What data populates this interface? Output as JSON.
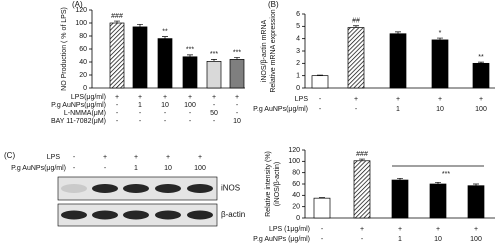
{
  "chart_data": [
    {
      "type": "bar",
      "panel_label": "(A)",
      "ylabel": "NO Production ( % of LPS)",
      "ylim": [
        0,
        120
      ],
      "yticks": [
        0,
        20,
        40,
        60,
        80,
        100,
        120
      ],
      "values": [
        100,
        94,
        76,
        48,
        41,
        44
      ],
      "errors": [
        3,
        4,
        3,
        3,
        3,
        3
      ],
      "colors": [
        "hatch",
        "#000000",
        "#000000",
        "#000000",
        "#d9d9d9",
        "#7f7f7f"
      ],
      "annotations": [
        "###",
        null,
        "**",
        "***",
        "***",
        "***"
      ],
      "conditions": [
        {
          "label": "LPS(μg/ml)",
          "values": [
            "+",
            "+",
            "+",
            "+",
            "+",
            "+"
          ]
        },
        {
          "label": "P.g AuNPs(μg/ml)",
          "values": [
            "-",
            "1",
            "10",
            "100",
            "-",
            "-"
          ]
        },
        {
          "label": "L-NMMA(μM)",
          "values": [
            "-",
            "-",
            "-",
            "-",
            "50",
            "-"
          ]
        },
        {
          "label": "BAY 11-7082(μM)",
          "values": [
            "-",
            "-",
            "-",
            "-",
            "-",
            "10"
          ]
        }
      ]
    },
    {
      "type": "bar",
      "panel_label": "(B)",
      "ylabel": [
        "iNOS/β-actin mRNA",
        "Relative mRNA expression"
      ],
      "ylim": [
        0,
        6
      ],
      "yticks": [
        0,
        1,
        2,
        3,
        4,
        5,
        6
      ],
      "values": [
        1.0,
        4.9,
        4.4,
        3.9,
        2.0
      ],
      "errors": [
        0.05,
        0.15,
        0.15,
        0.15,
        0.1
      ],
      "colors": [
        "#ffffff",
        "hatch",
        "#000000",
        "#000000",
        "#000000"
      ],
      "annotations": [
        null,
        "##",
        null,
        "*",
        "**"
      ],
      "conditions": [
        {
          "label": "LPS",
          "values": [
            "-",
            "+",
            "+",
            "+",
            "+"
          ]
        },
        {
          "label": "P.g AuNPs(μg/ml)",
          "values": [
            "-",
            "-",
            "1",
            "10",
            "100"
          ]
        }
      ]
    },
    {
      "type": "bar",
      "ylabel": [
        "Relative intensity (%)",
        "(iNOS/β-actin)"
      ],
      "ylim": [
        0,
        120
      ],
      "yticks": [
        0,
        20,
        40,
        60,
        80,
        100,
        120
      ],
      "values": [
        35,
        101,
        67,
        60,
        57
      ],
      "errors": [
        1,
        3,
        3,
        3,
        3
      ],
      "colors": [
        "#ffffff",
        "hatch",
        "#000000",
        "#000000",
        "#000000"
      ],
      "annotations": [
        null,
        "###",
        null,
        null,
        null
      ],
      "group_annotation": "***",
      "conditions": [
        {
          "label": "LPS (1μg/ml)",
          "values": [
            "-",
            "+",
            "+",
            "+",
            "+"
          ]
        },
        {
          "label": "P.g AuNPs (μg/ml)",
          "values": [
            "-",
            "-",
            "1",
            "10",
            "100"
          ]
        }
      ]
    }
  ],
  "blot": {
    "panel_label": "(C)",
    "conditions": [
      {
        "label": "LPS",
        "values": [
          "-",
          "+",
          "+",
          "+",
          "+"
        ]
      },
      {
        "label": "P.g AuNPs(μg/ml)",
        "values": [
          "-",
          "-",
          "1",
          "10",
          "100"
        ]
      }
    ],
    "bands": [
      "iNOS",
      "β-actin"
    ]
  }
}
